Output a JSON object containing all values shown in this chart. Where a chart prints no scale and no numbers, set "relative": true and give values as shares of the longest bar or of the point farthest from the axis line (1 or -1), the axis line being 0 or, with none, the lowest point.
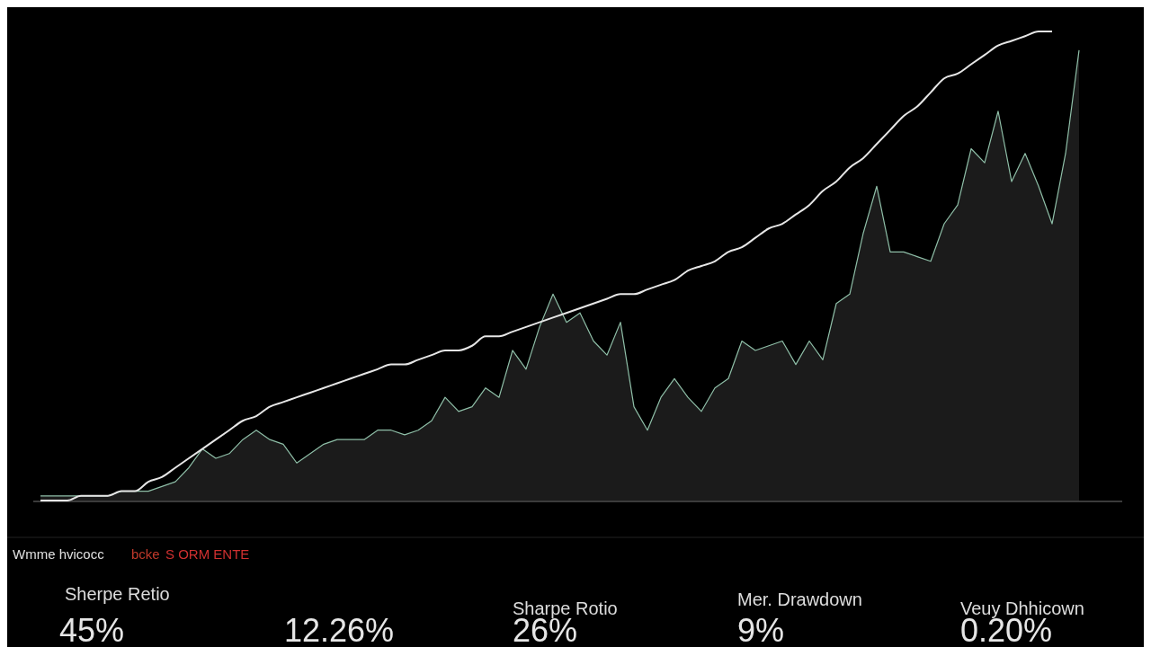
{
  "chart_data": {
    "type": "area",
    "relative": true,
    "categories": [
      null,
      null,
      null,
      null,
      null,
      null,
      null,
      null,
      null,
      null,
      null,
      null,
      null,
      null,
      null,
      null,
      null,
      null,
      null,
      null,
      null,
      null,
      null,
      null,
      null,
      null,
      null,
      null,
      null,
      null,
      null,
      null,
      null,
      null,
      null,
      null,
      null,
      null,
      null,
      null,
      null,
      null,
      null,
      null,
      null,
      null,
      null,
      null,
      null,
      null,
      null,
      null,
      null,
      null,
      null,
      null,
      null,
      null,
      null,
      null,
      null,
      null,
      null,
      null,
      null,
      null,
      null,
      null,
      null,
      null,
      null,
      null,
      null,
      null,
      null,
      null,
      null,
      null
    ],
    "series": [
      {
        "color": "#8fbfa8",
        "values": [
          0.01,
          0.01,
          0.01,
          0.01,
          0.01,
          0.01,
          0.02,
          0.02,
          0.02,
          0.03,
          0.04,
          0.07,
          0.11,
          0.09,
          0.1,
          0.13,
          0.15,
          0.13,
          0.12,
          0.08,
          0.1,
          0.12,
          0.13,
          0.13,
          0.13,
          0.15,
          0.15,
          0.14,
          0.15,
          0.17,
          0.22,
          0.19,
          0.2,
          0.24,
          0.22,
          0.32,
          0.28,
          0.37,
          0.44,
          0.38,
          0.4,
          0.34,
          0.31,
          0.38,
          0.2,
          0.15,
          0.22,
          0.26,
          0.22,
          0.19,
          0.24,
          0.26,
          0.34,
          0.32,
          0.33,
          0.34,
          0.29,
          0.34,
          0.3,
          0.42,
          0.44,
          0.57,
          0.67,
          0.53,
          0.53,
          0.52,
          0.51,
          0.59,
          0.63,
          0.75,
          0.72,
          0.83,
          0.68,
          0.74,
          0.67,
          0.59,
          0.74,
          0.96
        ]
      },
      {
        "type": "line",
        "color": "#e6e6e6",
        "values": [
          0,
          0,
          0,
          0.01,
          0.01,
          0.01,
          0.02,
          0.02,
          0.04,
          0.05,
          0.07,
          0.09,
          0.11,
          0.13,
          0.15,
          0.17,
          0.18,
          0.2,
          0.21,
          0.22,
          0.23,
          0.24,
          0.25,
          0.26,
          0.27,
          0.28,
          0.29,
          0.29,
          0.3,
          0.31,
          0.32,
          0.32,
          0.33,
          0.35,
          0.35,
          0.36,
          0.37,
          0.38,
          0.39,
          0.4,
          0.41,
          0.42,
          0.43,
          0.44,
          0.44,
          0.45,
          0.46,
          0.47,
          0.49,
          0.5,
          0.51,
          0.53,
          0.54,
          0.56,
          0.58,
          0.59,
          0.61,
          0.63,
          0.66,
          0.68,
          0.71,
          0.73,
          0.76,
          0.79,
          0.82,
          0.84,
          0.87,
          0.9,
          0.91,
          0.93,
          0.95,
          0.97,
          0.98,
          0.99,
          1,
          1,
          null,
          null
        ]
      }
    ],
    "annotations": [
      "Wmme hvicocc",
      "bcke",
      "S ORM ENTE",
      "Sherpe Retio",
      "45%",
      "12.26%",
      "Sharpe Rotio",
      "26%",
      "Mer. Drawdown",
      "9%",
      "Veuy Dhhicown",
      "0.20%"
    ]
  }
}
